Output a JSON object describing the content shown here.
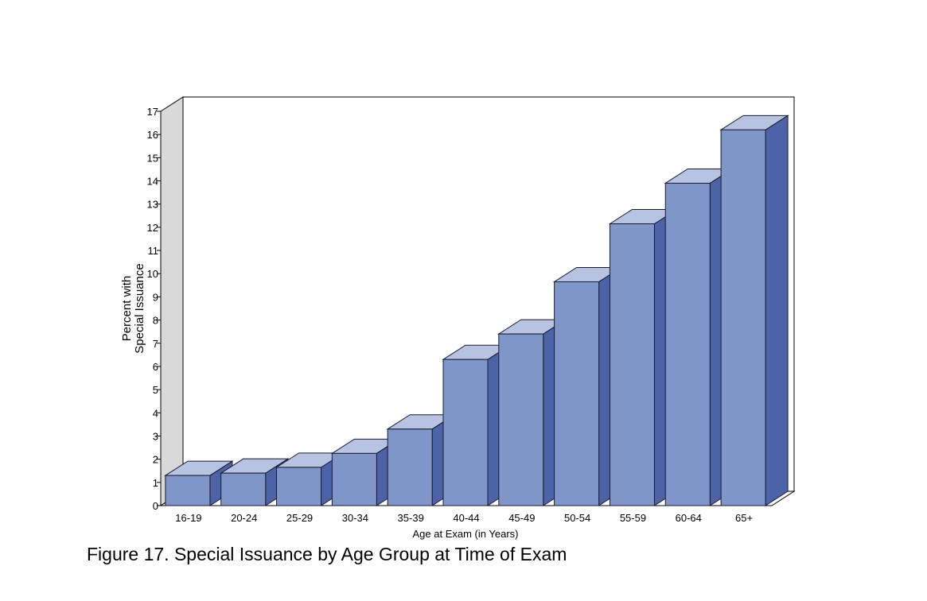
{
  "chart_data": {
    "type": "bar",
    "title": "Figure 17. Special Issuance by Age Group at Time of Exam",
    "xlabel": "Age at Exam (in Years)",
    "ylabel_lines": [
      "Percent with",
      "Special Issuance"
    ],
    "categories": [
      "16-19",
      "20-24",
      "25-29",
      "30-34",
      "35-39",
      "40-44",
      "45-49",
      "50-54",
      "55-59",
      "60-64",
      "65+"
    ],
    "values": [
      1.3,
      1.4,
      1.65,
      2.25,
      3.3,
      6.3,
      7.4,
      9.65,
      12.15,
      13.9,
      16.2
    ],
    "ylim": [
      0,
      17
    ],
    "yticks": [
      0,
      1,
      2,
      3,
      4,
      5,
      6,
      7,
      8,
      9,
      10,
      11,
      12,
      13,
      14,
      15,
      16,
      17
    ],
    "style": "3d",
    "grid": false,
    "colors": {
      "front": "#8196c8",
      "top": "#b8c3e2",
      "side": "#4d63a8",
      "wall": "#d9d9d9"
    }
  }
}
